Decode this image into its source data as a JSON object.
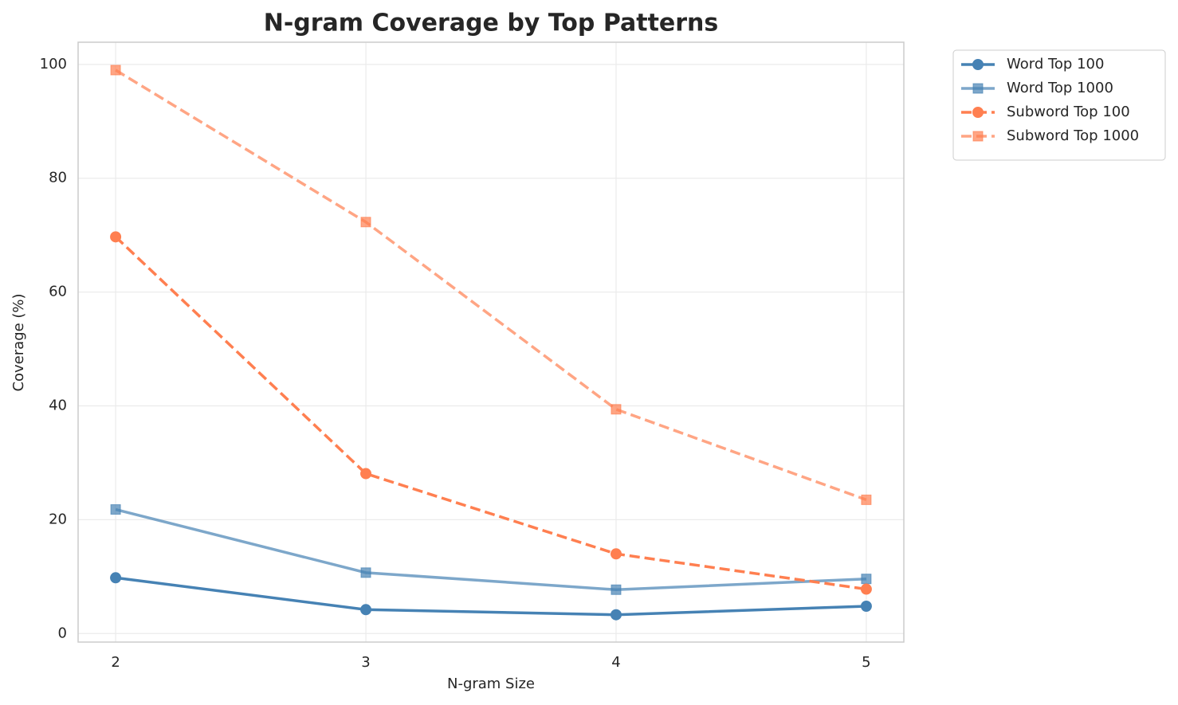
{
  "chart_data": {
    "type": "line",
    "title": "N-gram Coverage by Top Patterns",
    "x_label": "N-gram Size",
    "y_label": "Coverage (%)",
    "x": [
      2,
      3,
      4,
      5
    ],
    "series": [
      {
        "name": "Word Top 100",
        "color": "#4682b4",
        "alpha": 1,
        "marker": "circle",
        "dash": false,
        "values": [
          9.8,
          4.2,
          3.3,
          4.8
        ]
      },
      {
        "name": "Word Top 1000",
        "color": "#4682b4",
        "alpha": 0.7,
        "marker": "square",
        "dash": false,
        "values": [
          21.8,
          10.7,
          7.7,
          9.6
        ]
      },
      {
        "name": "Subword Top 100",
        "color": "#ff7f50",
        "alpha": 1,
        "marker": "circle",
        "dash": true,
        "values": [
          69.7,
          28.1,
          14.0,
          7.8
        ]
      },
      {
        "name": "Subword Top 1000",
        "color": "#ff7f50",
        "alpha": 0.7,
        "marker": "square",
        "dash": true,
        "values": [
          99.0,
          72.3,
          39.4,
          23.5
        ]
      }
    ],
    "xlim": [
      1.85,
      5.15
    ],
    "xticks": [
      2,
      3,
      4,
      5
    ],
    "ylim": [
      -1.5,
      103.9
    ],
    "yticks": [
      0,
      20,
      40,
      60,
      80,
      100
    ],
    "grid": true,
    "legend": "outside-upper-right"
  }
}
